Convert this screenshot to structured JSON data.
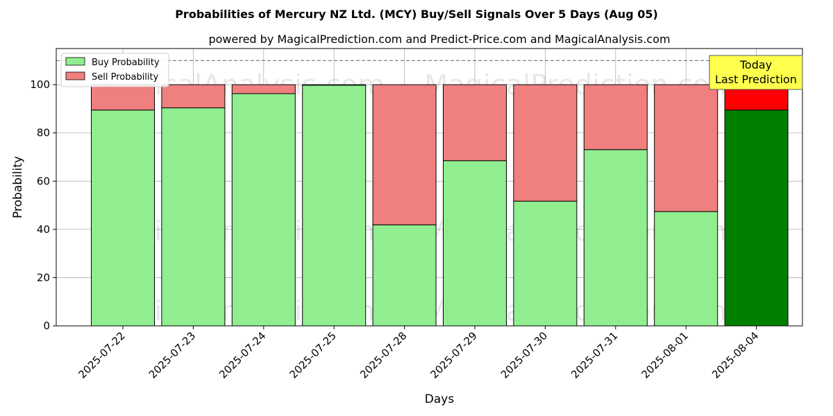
{
  "chart_data": {
    "type": "bar",
    "stacked": true,
    "title": "Probabilities of Mercury NZ Ltd. (MCY) Buy/Sell Signals Over 5 Days (Aug 05)",
    "subtitle": "powered by MagicalPrediction.com and Predict-Price.com and MagicalAnalysis.com",
    "xlabel": "Days",
    "ylabel": "Probability",
    "ylim": [
      0,
      115
    ],
    "yticks": [
      0,
      20,
      40,
      60,
      80,
      100
    ],
    "reference_line": 110,
    "grid": true,
    "legend_placement": "top-left",
    "categories": [
      "2025-07-22",
      "2025-07-23",
      "2025-07-24",
      "2025-07-25",
      "2025-07-28",
      "2025-07-29",
      "2025-07-30",
      "2025-07-31",
      "2025-08-01",
      "2025-08-04"
    ],
    "series": [
      {
        "name": "Buy Probability",
        "values": [
          89.5,
          90.4,
          96.3,
          99.8,
          41.9,
          68.5,
          51.7,
          73.1,
          47.4,
          89.5
        ],
        "color": "#90ee90",
        "highlight_color": "#008000"
      },
      {
        "name": "Sell Probability",
        "values": [
          10.5,
          9.6,
          3.7,
          0.2,
          58.1,
          31.5,
          48.3,
          26.9,
          52.6,
          10.5
        ],
        "color": "#f08080",
        "highlight_color": "#ff0000"
      }
    ],
    "highlight_index": 9,
    "annotation": {
      "line1": "Today",
      "line2": "Last Prediction",
      "color": "#ffff4d"
    },
    "watermarks": [
      "MagicalAnalysis.com",
      "MagicalPrediction.com"
    ]
  }
}
